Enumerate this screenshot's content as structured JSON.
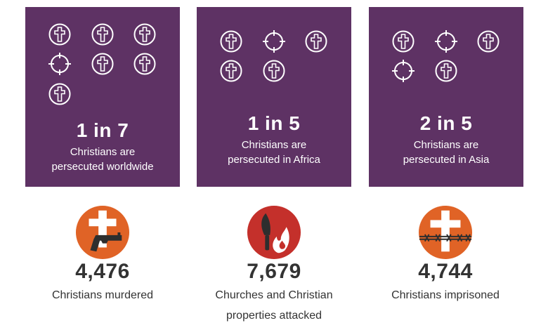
{
  "colors": {
    "card_bg": "#5e3264",
    "badge_orange": "#e06326",
    "badge_red": "#c4302b",
    "text_dark": "#333333"
  },
  "cards": [
    {
      "ratio": "1 in 7",
      "desc_line1": "Christians are",
      "desc_line2": "persecuted worldwide",
      "icons": [
        "cross-circle-icon",
        "cross-circle-icon",
        "cross-circle-icon",
        "crosshair-icon",
        "cross-circle-icon",
        "cross-circle-icon",
        "cross-circle-icon"
      ]
    },
    {
      "ratio": "1 in 5",
      "desc_line1": "Christians are",
      "desc_line2": "persecuted in Africa",
      "icons": [
        "cross-circle-icon",
        "crosshair-icon",
        "cross-circle-icon",
        "cross-circle-icon",
        "cross-circle-icon"
      ]
    },
    {
      "ratio": "2 in 5",
      "desc_line1": "Christians are",
      "desc_line2": "persecuted in Asia",
      "icons": [
        "cross-circle-icon",
        "crosshair-icon",
        "cross-circle-icon",
        "crosshair-icon",
        "cross-circle-icon"
      ]
    }
  ],
  "stats": [
    {
      "number": "4,476",
      "label_line1": "Christians murdered",
      "label_line2": "",
      "icon": "cross-gun-icon"
    },
    {
      "number": "7,679",
      "label_line1": "Churches and Christian",
      "label_line2": "properties attacked",
      "icon": "flame-knife-icon"
    },
    {
      "number": "4,744",
      "label_line1": "Christians imprisoned",
      "label_line2": "",
      "icon": "cross-barbed-wire-icon"
    }
  ]
}
